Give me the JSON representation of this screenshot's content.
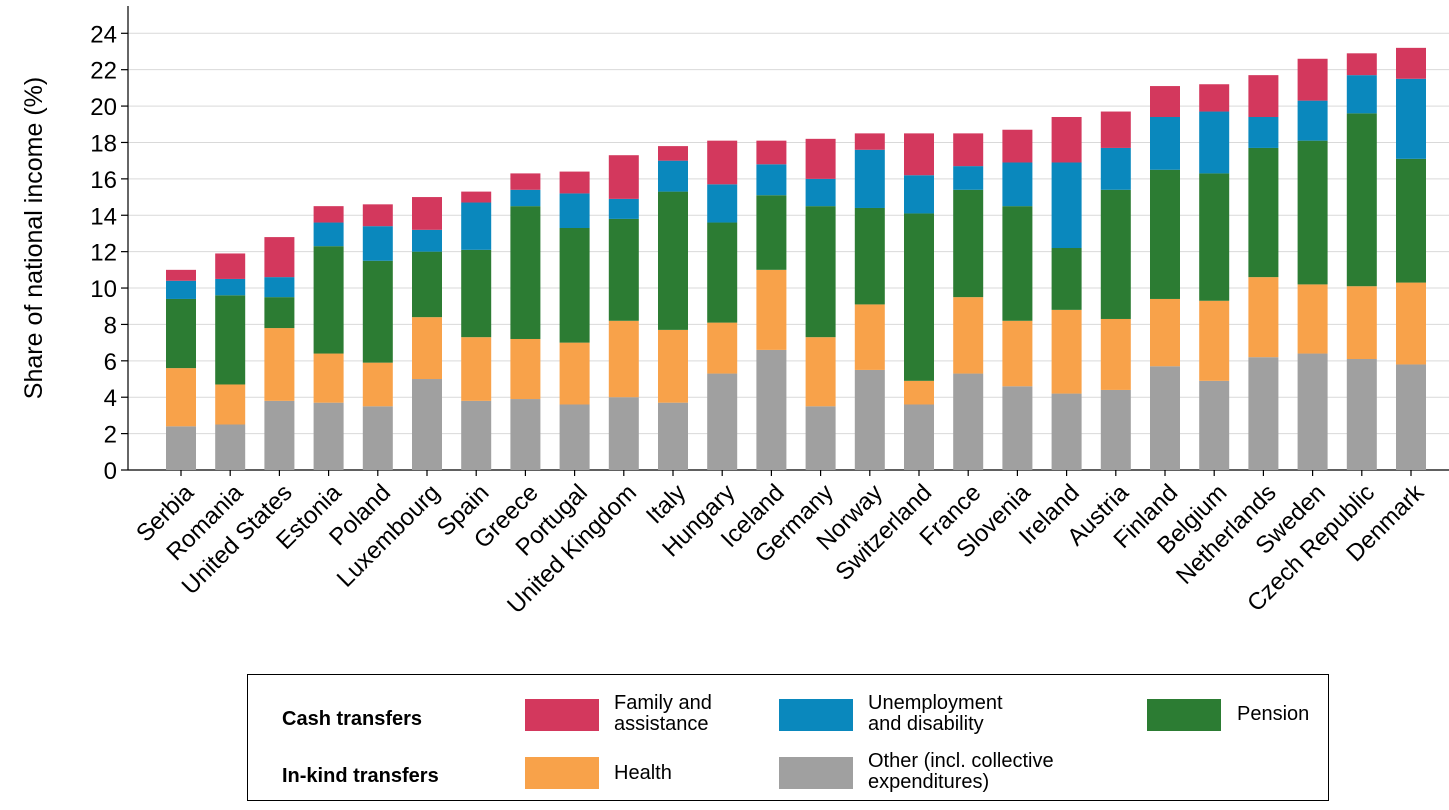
{
  "chart_data": {
    "type": "bar",
    "stacked": true,
    "ylabel": "Share of national income (%)",
    "xlabel": "",
    "ylim": [
      0,
      25.5
    ],
    "yticks": [
      "0",
      "2",
      "4",
      "6",
      "8",
      "10",
      "12",
      "14",
      "16",
      "18",
      "20",
      "22",
      "24"
    ],
    "grid": "horizontal",
    "categories": [
      "Serbia",
      "Romania",
      "United States",
      "Estonia",
      "Poland",
      "Luxembourg",
      "Spain",
      "Greece",
      "Portugal",
      "United Kingdom",
      "Italy",
      "Hungary",
      "Iceland",
      "Germany",
      "Norway",
      "Switzerland",
      "France",
      "Slovenia",
      "Ireland",
      "Austria",
      "Finland",
      "Belgium",
      "Netherlands",
      "Sweden",
      "Czech Republic",
      "Denmark"
    ],
    "series": [
      {
        "name": "Other (incl. collective expenditures)",
        "color": "#a0a0a0",
        "values": [
          2.4,
          2.5,
          3.8,
          3.7,
          3.5,
          5.0,
          3.8,
          3.9,
          3.6,
          4.0,
          3.7,
          5.3,
          6.6,
          3.5,
          5.5,
          3.6,
          5.3,
          4.6,
          4.2,
          4.4,
          5.7,
          4.9,
          6.2,
          6.4,
          6.1,
          5.8
        ]
      },
      {
        "name": "Health",
        "color": "#f8a24a",
        "values": [
          3.2,
          2.2,
          4.0,
          2.7,
          2.4,
          3.4,
          3.5,
          3.3,
          3.4,
          4.2,
          4.0,
          2.8,
          4.4,
          3.8,
          3.6,
          1.3,
          4.2,
          3.6,
          4.6,
          3.9,
          3.7,
          4.4,
          4.4,
          3.8,
          4.0,
          4.5
        ]
      },
      {
        "name": "Pension",
        "color": "#2c7c33",
        "values": [
          3.8,
          4.9,
          1.7,
          5.9,
          5.6,
          3.6,
          4.8,
          7.3,
          6.3,
          5.6,
          7.6,
          5.5,
          4.1,
          7.2,
          5.3,
          9.2,
          5.9,
          6.3,
          3.4,
          7.1,
          7.1,
          7.0,
          7.1,
          7.9,
          9.5,
          6.8
        ]
      },
      {
        "name": "Unemployment and disability",
        "color": "#0a88bd",
        "values": [
          1.0,
          0.9,
          1.1,
          1.3,
          1.9,
          1.2,
          2.6,
          0.9,
          1.9,
          1.1,
          1.7,
          2.1,
          1.7,
          1.5,
          3.2,
          2.1,
          1.3,
          2.4,
          4.7,
          2.3,
          2.9,
          3.4,
          1.7,
          2.2,
          2.1,
          4.4
        ]
      },
      {
        "name": "Family and assistance",
        "color": "#d3385d",
        "values": [
          0.6,
          1.4,
          2.2,
          0.9,
          1.2,
          1.8,
          0.6,
          0.9,
          1.2,
          2.4,
          0.8,
          2.4,
          1.3,
          2.2,
          0.9,
          2.3,
          1.8,
          1.8,
          2.5,
          2.0,
          1.7,
          1.5,
          2.3,
          2.3,
          1.2,
          1.7
        ]
      }
    ],
    "legend": {
      "placement": "bottom",
      "groups": [
        "Cash transfers",
        "In-kind transfers"
      ],
      "items": [
        {
          "text_lines": [
            "Family and",
            "assistance"
          ],
          "color": "#d3385d"
        },
        {
          "text_lines": [
            "Unemployment",
            "and disability"
          ],
          "color": "#0a88bd"
        },
        {
          "text_lines": [
            "Pension"
          ],
          "color": "#2c7c33"
        },
        {
          "text_lines": [
            "Health"
          ],
          "color": "#f8a24a"
        },
        {
          "text_lines": [
            "Other (incl. collective",
            "expenditures)"
          ],
          "color": "#a0a0a0"
        }
      ]
    }
  }
}
